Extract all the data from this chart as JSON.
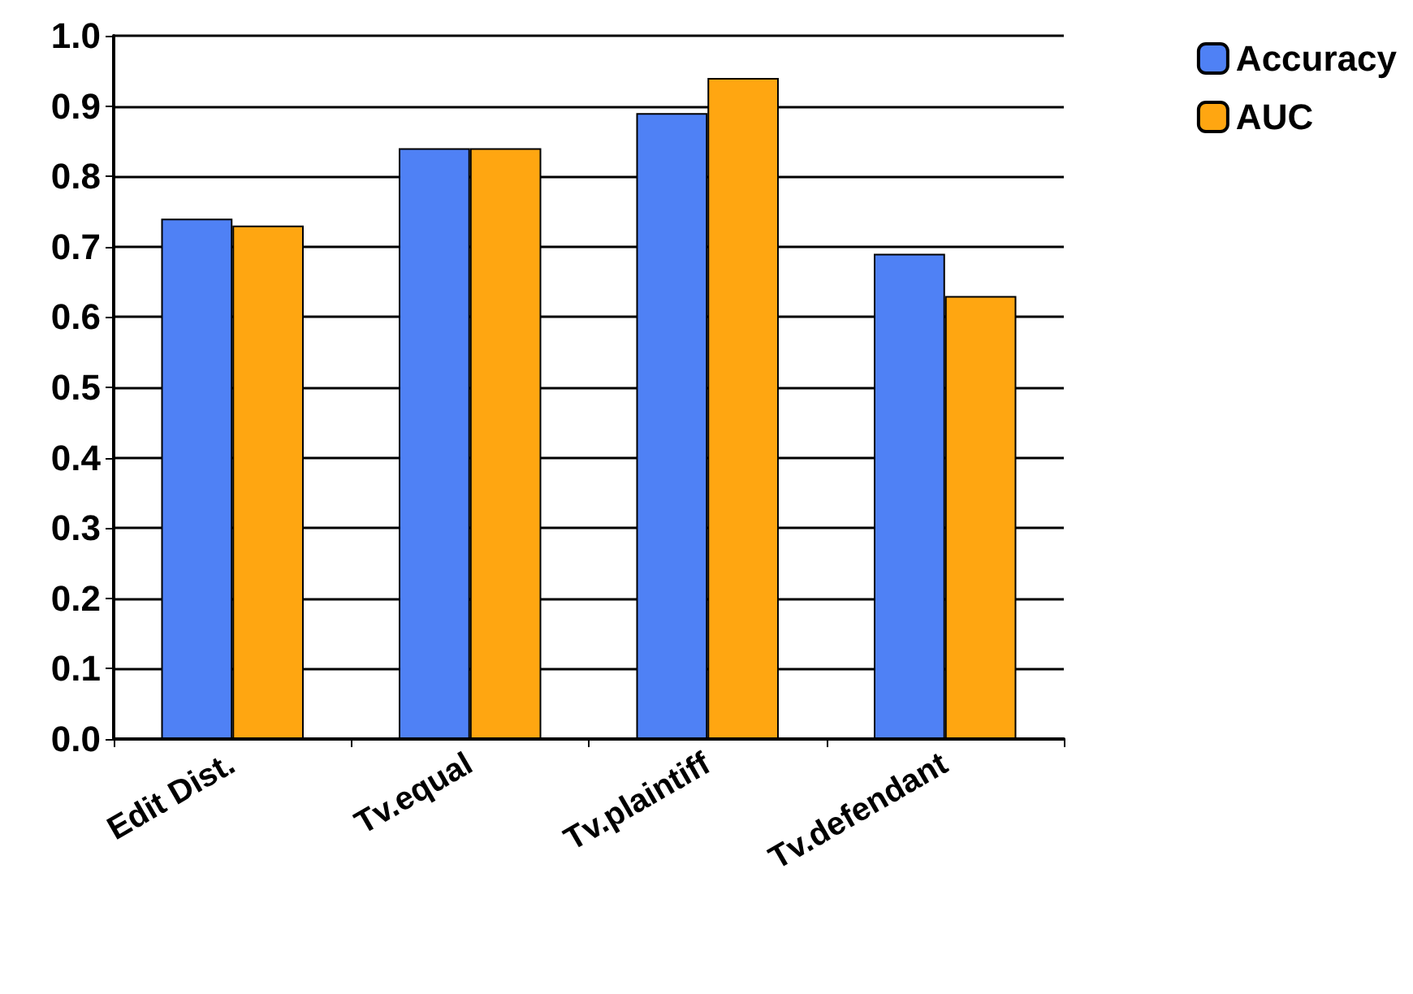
{
  "chart_data": {
    "type": "bar",
    "categories": [
      "Edit Dist.",
      "Tv.equal",
      "Tv.plaintiff",
      "Tv.defendant"
    ],
    "series": [
      {
        "name": "Accuracy",
        "color": "#4f81f5",
        "values": [
          0.74,
          0.84,
          0.89,
          0.69
        ]
      },
      {
        "name": "AUC",
        "color": "#ffa611",
        "values": [
          0.73,
          0.84,
          0.94,
          0.63
        ]
      }
    ],
    "ylim": [
      0,
      1
    ],
    "yticks": [
      {
        "value": 0,
        "label": "0.0"
      },
      {
        "value": 0.1,
        "label": "0.1"
      },
      {
        "value": 0.2,
        "label": "0.2"
      },
      {
        "value": 0.3,
        "label": "0.3"
      },
      {
        "value": 0.4,
        "label": "0.4"
      },
      {
        "value": 0.5,
        "label": "0.5"
      },
      {
        "value": 0.6,
        "label": "0.6"
      },
      {
        "value": 0.7,
        "label": "0.7"
      },
      {
        "value": 0.8,
        "label": "0.8"
      },
      {
        "value": 0.9,
        "label": "0.9"
      },
      {
        "value": 1,
        "label": "1.0"
      }
    ],
    "grid": "y",
    "legend": "top right"
  }
}
